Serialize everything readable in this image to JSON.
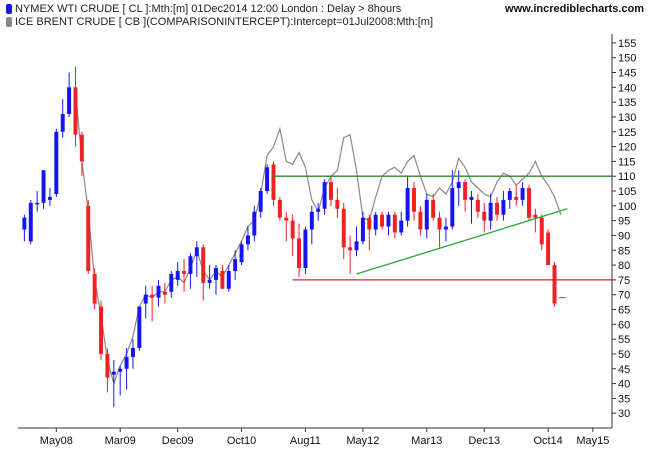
{
  "header": {
    "series1_label": "NYMEX WTI CRUDE [ CL ]:Mth:[m]  01Dec2014 12:00 London : Delay > 8hours",
    "series2_label": "ICE BRENT CRUDE [ CB ](COMPARISONINTERCEPT):Intercept=01Jul2008:Mth:[m]",
    "series1_color": "#1515ee",
    "series2_color": "#8a8a8a",
    "watermark": "www.incrediblecharts.com"
  },
  "chart_data": {
    "type": "candlestick",
    "x_tick_labels": [
      "May08",
      "Mar09",
      "Dec09",
      "Oct10",
      "Aug11",
      "May12",
      "Mar13",
      "Dec13",
      "Oct14",
      "May15"
    ],
    "x_tick_months": [
      6,
      16,
      25,
      35,
      45,
      54,
      64,
      73,
      83,
      90
    ],
    "y_tick_values": [
      30,
      35,
      40,
      45,
      50,
      55,
      60,
      65,
      70,
      75,
      80,
      85,
      90,
      95,
      100,
      105,
      110,
      115,
      120,
      125,
      130,
      135,
      140,
      145,
      150,
      155
    ],
    "ylim": [
      25,
      158
    ],
    "xlim": [
      0,
      93
    ],
    "up_color": "#1515ee",
    "down_color": "#ee2222",
    "series": [
      {
        "name": "NYMEX WTI CRUDE [ CL ]",
        "candles": [
          {
            "m": 1,
            "o": 92,
            "h": 97,
            "l": 88,
            "c": 96
          },
          {
            "m": 2,
            "o": 88,
            "h": 102,
            "l": 87,
            "c": 101
          },
          {
            "m": 3,
            "o": 101,
            "h": 105,
            "l": 98,
            "c": 101
          },
          {
            "m": 4,
            "o": 101,
            "h": 112,
            "l": 99,
            "c": 112
          },
          {
            "m": 5,
            "o": 102,
            "h": 106,
            "l": 100,
            "c": 103
          },
          {
            "m": 6,
            "o": 104,
            "h": 126,
            "l": 103,
            "c": 125
          },
          {
            "m": 7,
            "o": 125,
            "h": 136,
            "l": 123,
            "c": 131
          },
          {
            "m": 8,
            "o": 131,
            "h": 145,
            "l": 130,
            "c": 140
          },
          {
            "m": 9,
            "o": 140,
            "h": 147,
            "l": 120,
            "c": 124
          },
          {
            "m": 10,
            "o": 124,
            "h": 125,
            "l": 110,
            "c": 115
          },
          {
            "m": 11,
            "o": 100,
            "h": 102,
            "l": 77,
            "c": 78
          },
          {
            "m": 12,
            "o": 77,
            "h": 79,
            "l": 65,
            "c": 67
          },
          {
            "m": 13,
            "o": 66,
            "h": 68,
            "l": 48,
            "c": 50
          },
          {
            "m": 14,
            "o": 50,
            "h": 52,
            "l": 37,
            "c": 42
          },
          {
            "m": 15,
            "o": 43,
            "h": 48,
            "l": 32,
            "c": 44
          },
          {
            "m": 16,
            "o": 44,
            "h": 46,
            "l": 36,
            "c": 45
          },
          {
            "m": 17,
            "o": 45,
            "h": 52,
            "l": 38,
            "c": 49
          },
          {
            "m": 18,
            "o": 49,
            "h": 55,
            "l": 45,
            "c": 52
          },
          {
            "m": 19,
            "o": 52,
            "h": 66,
            "l": 51,
            "c": 66
          },
          {
            "m": 20,
            "o": 67,
            "h": 73,
            "l": 62,
            "c": 70
          },
          {
            "m": 21,
            "o": 70,
            "h": 73,
            "l": 61,
            "c": 69
          },
          {
            "m": 22,
            "o": 69,
            "h": 75,
            "l": 66,
            "c": 73
          },
          {
            "m": 23,
            "o": 71,
            "h": 74,
            "l": 67,
            "c": 70
          },
          {
            "m": 24,
            "o": 71,
            "h": 78,
            "l": 69,
            "c": 77
          },
          {
            "m": 25,
            "o": 75,
            "h": 81,
            "l": 73,
            "c": 78
          },
          {
            "m": 26,
            "o": 78,
            "h": 82,
            "l": 71,
            "c": 77
          },
          {
            "m": 27,
            "o": 77,
            "h": 84,
            "l": 72,
            "c": 83
          },
          {
            "m": 28,
            "o": 83,
            "h": 88,
            "l": 76,
            "c": 86
          },
          {
            "m": 29,
            "o": 86,
            "h": 87,
            "l": 68,
            "c": 74
          },
          {
            "m": 30,
            "o": 74,
            "h": 80,
            "l": 72,
            "c": 75
          },
          {
            "m": 31,
            "o": 75,
            "h": 80,
            "l": 70,
            "c": 79
          },
          {
            "m": 32,
            "o": 78,
            "h": 80,
            "l": 72,
            "c": 72
          },
          {
            "m": 33,
            "o": 72,
            "h": 80,
            "l": 71,
            "c": 78
          },
          {
            "m": 34,
            "o": 78,
            "h": 85,
            "l": 75,
            "c": 82
          },
          {
            "m": 35,
            "o": 81,
            "h": 88,
            "l": 80,
            "c": 87
          },
          {
            "m": 36,
            "o": 87,
            "h": 93,
            "l": 85,
            "c": 90
          },
          {
            "m": 37,
            "o": 90,
            "h": 100,
            "l": 88,
            "c": 98
          },
          {
            "m": 38,
            "o": 98,
            "h": 106,
            "l": 96,
            "c": 105
          },
          {
            "m": 39,
            "o": 105,
            "h": 114,
            "l": 104,
            "c": 113
          },
          {
            "m": 40,
            "o": 114,
            "h": 115,
            "l": 100,
            "c": 102
          },
          {
            "m": 41,
            "o": 102,
            "h": 103,
            "l": 95,
            "c": 96
          },
          {
            "m": 42,
            "o": 96,
            "h": 98,
            "l": 88,
            "c": 95
          },
          {
            "m": 43,
            "o": 95,
            "h": 97,
            "l": 83,
            "c": 89
          },
          {
            "m": 44,
            "o": 89,
            "h": 94,
            "l": 76,
            "c": 79
          },
          {
            "m": 45,
            "o": 79,
            "h": 93,
            "l": 77,
            "c": 92
          },
          {
            "m": 46,
            "o": 92,
            "h": 100,
            "l": 87,
            "c": 98
          },
          {
            "m": 47,
            "o": 98,
            "h": 101,
            "l": 95,
            "c": 99
          },
          {
            "m": 48,
            "o": 99,
            "h": 109,
            "l": 97,
            "c": 108
          },
          {
            "m": 49,
            "o": 108,
            "h": 110,
            "l": 100,
            "c": 102
          },
          {
            "m": 50,
            "o": 102,
            "h": 106,
            "l": 96,
            "c": 99
          },
          {
            "m": 51,
            "o": 99,
            "h": 101,
            "l": 82,
            "c": 86
          },
          {
            "m": 52,
            "o": 86,
            "h": 90,
            "l": 77,
            "c": 85
          },
          {
            "m": 53,
            "o": 85,
            "h": 93,
            "l": 83,
            "c": 88
          },
          {
            "m": 54,
            "o": 88,
            "h": 98,
            "l": 87,
            "c": 96
          },
          {
            "m": 55,
            "o": 96,
            "h": 97,
            "l": 85,
            "c": 92
          },
          {
            "m": 56,
            "o": 92,
            "h": 98,
            "l": 90,
            "c": 97
          },
          {
            "m": 57,
            "o": 97,
            "h": 98,
            "l": 92,
            "c": 93
          },
          {
            "m": 58,
            "o": 93,
            "h": 98,
            "l": 90,
            "c": 97
          },
          {
            "m": 59,
            "o": 97,
            "h": 98,
            "l": 89,
            "c": 91
          },
          {
            "m": 60,
            "o": 91,
            "h": 98,
            "l": 90,
            "c": 95
          },
          {
            "m": 61,
            "o": 95,
            "h": 110,
            "l": 93,
            "c": 106
          },
          {
            "m": 62,
            "o": 106,
            "h": 108,
            "l": 95,
            "c": 98
          },
          {
            "m": 63,
            "o": 98,
            "h": 100,
            "l": 90,
            "c": 92
          },
          {
            "m": 64,
            "o": 92,
            "h": 104,
            "l": 89,
            "c": 102
          },
          {
            "m": 65,
            "o": 102,
            "h": 104,
            "l": 95,
            "c": 96
          },
          {
            "m": 66,
            "o": 96,
            "h": 98,
            "l": 86,
            "c": 92
          },
          {
            "m": 67,
            "o": 92,
            "h": 96,
            "l": 88,
            "c": 93
          },
          {
            "m": 68,
            "o": 93,
            "h": 112,
            "l": 92,
            "c": 106
          },
          {
            "m": 69,
            "o": 106,
            "h": 112,
            "l": 100,
            "c": 108
          },
          {
            "m": 70,
            "o": 108,
            "h": 109,
            "l": 98,
            "c": 102
          },
          {
            "m": 71,
            "o": 102,
            "h": 105,
            "l": 94,
            "c": 103
          },
          {
            "m": 72,
            "o": 102,
            "h": 104,
            "l": 96,
            "c": 98
          },
          {
            "m": 73,
            "o": 98,
            "h": 101,
            "l": 91,
            "c": 95
          },
          {
            "m": 74,
            "o": 95,
            "h": 104,
            "l": 92,
            "c": 101
          },
          {
            "m": 75,
            "o": 101,
            "h": 103,
            "l": 95,
            "c": 97
          },
          {
            "m": 76,
            "o": 97,
            "h": 105,
            "l": 95,
            "c": 102
          },
          {
            "m": 77,
            "o": 102,
            "h": 106,
            "l": 99,
            "c": 105
          },
          {
            "m": 78,
            "o": 103,
            "h": 107,
            "l": 100,
            "c": 102
          },
          {
            "m": 79,
            "o": 102,
            "h": 108,
            "l": 100,
            "c": 106
          },
          {
            "m": 80,
            "o": 106,
            "h": 107,
            "l": 95,
            "c": 96
          },
          {
            "m": 81,
            "o": 97,
            "h": 99,
            "l": 91,
            "c": 96
          },
          {
            "m": 82,
            "o": 96,
            "h": 97,
            "l": 85,
            "c": 87
          },
          {
            "m": 83,
            "o": 91,
            "h": 92,
            "l": 80,
            "c": 80
          },
          {
            "m": 84,
            "o": 80,
            "h": 81,
            "l": 66,
            "c": 67
          }
        ],
        "last_tick": {
          "m": 85,
          "value": 69
        }
      },
      {
        "name": "ICE BRENT CRUDE [ CB ]",
        "style": "line",
        "color": "#8a8a8a",
        "points": [
          [
            9,
            139
          ],
          [
            10,
            115
          ],
          [
            11,
            98
          ],
          [
            12,
            75
          ],
          [
            13,
            63
          ],
          [
            14,
            48
          ],
          [
            15,
            40
          ],
          [
            16,
            46
          ],
          [
            17,
            50
          ],
          [
            18,
            56
          ],
          [
            19,
            66
          ],
          [
            20,
            70
          ],
          [
            21,
            69
          ],
          [
            22,
            71
          ],
          [
            23,
            71
          ],
          [
            24,
            75
          ],
          [
            25,
            76
          ],
          [
            26,
            74
          ],
          [
            27,
            79
          ],
          [
            28,
            85
          ],
          [
            29,
            78
          ],
          [
            30,
            75
          ],
          [
            31,
            78
          ],
          [
            32,
            76
          ],
          [
            33,
            80
          ],
          [
            34,
            84
          ],
          [
            35,
            88
          ],
          [
            36,
            93
          ],
          [
            37,
            95
          ],
          [
            38,
            104
          ],
          [
            39,
            117
          ],
          [
            40,
            120
          ],
          [
            41,
            126
          ],
          [
            42,
            115
          ],
          [
            43,
            114
          ],
          [
            44,
            118
          ],
          [
            45,
            113
          ],
          [
            46,
            102
          ],
          [
            47,
            98
          ],
          [
            48,
            106
          ],
          [
            49,
            110
          ],
          [
            50,
            112
          ],
          [
            51,
            123
          ],
          [
            52,
            124
          ],
          [
            53,
            112
          ],
          [
            54,
            96
          ],
          [
            55,
            95
          ],
          [
            56,
            103
          ],
          [
            57,
            110
          ],
          [
            58,
            112
          ],
          [
            59,
            113
          ],
          [
            60,
            111
          ],
          [
            61,
            115
          ],
          [
            62,
            117
          ],
          [
            63,
            110
          ],
          [
            64,
            104
          ],
          [
            65,
            103
          ],
          [
            66,
            106
          ],
          [
            67,
            104
          ],
          [
            68,
            108
          ],
          [
            69,
            116
          ],
          [
            70,
            113
          ],
          [
            71,
            108
          ],
          [
            72,
            106
          ],
          [
            73,
            104
          ],
          [
            74,
            103
          ],
          [
            75,
            108
          ],
          [
            76,
            111
          ],
          [
            77,
            110
          ],
          [
            78,
            107
          ],
          [
            79,
            109
          ],
          [
            80,
            111
          ],
          [
            81,
            115
          ],
          [
            82,
            110
          ],
          [
            83,
            107
          ],
          [
            84,
            103
          ],
          [
            85,
            97
          ]
        ]
      }
    ],
    "trendlines": [
      {
        "name": "resistance",
        "color": "#2a8a2a",
        "from": [
          40,
          110
        ],
        "to": [
          93,
          110
        ]
      },
      {
        "name": "rising-support",
        "color": "#2fa82f",
        "from": [
          53,
          77
        ],
        "to": [
          86,
          99
        ]
      },
      {
        "name": "support",
        "color": "#e02020",
        "from": [
          43,
          75
        ],
        "to": [
          93,
          75
        ]
      }
    ],
    "grid": false,
    "legend": "top-left"
  }
}
